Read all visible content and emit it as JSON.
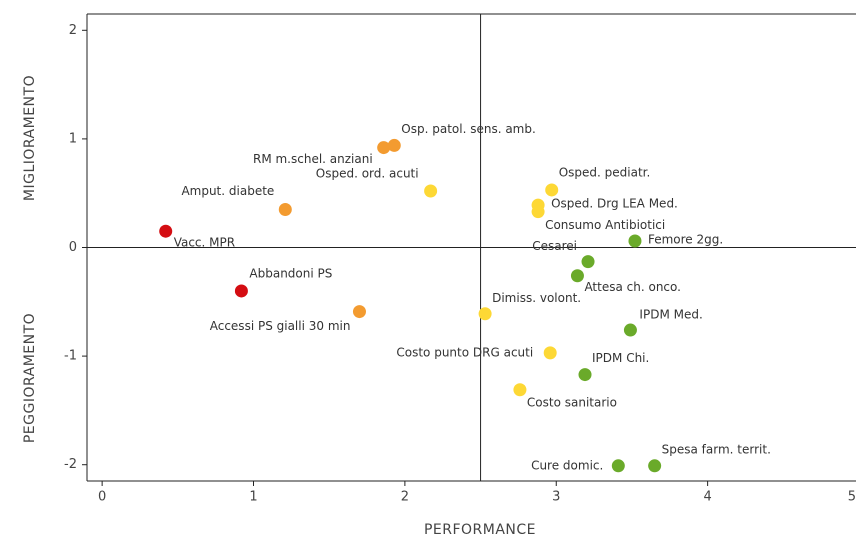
{
  "chart_data": {
    "type": "scatter",
    "xlabel": "PERFORMANCE",
    "ylabel_top": "MIGLIORAMENTO",
    "ylabel_bottom": "PEGGIORAMENTO",
    "labels": [
      "Vacc. MPR",
      "Abbandoni PS",
      "Amput. diabete",
      "Accessi PS gialli 30 min",
      "RM m.schel. anziani",
      "Osp. patol. sens. amb.",
      "Osped. ord. acuti",
      "Dimiss. volont.",
      "Osped. pediatr.",
      "Osped. Drg LEA Med.",
      "Consumo Antibiotici",
      "Costo punto DRG acuti",
      "Costo sanitario",
      "Cesarei",
      "Femore 2gg.",
      "Attesa ch. onco.",
      "IPDM Med.",
      "IPDM Chi.",
      "Cure domic.",
      "Spesa farm. territ."
    ],
    "x": [
      0.42,
      0.92,
      1.21,
      1.7,
      1.86,
      1.93,
      2.17,
      2.53,
      2.97,
      2.88,
      2.88,
      2.96,
      2.76,
      3.21,
      3.52,
      3.14,
      3.49,
      3.19,
      3.41,
      3.65
    ],
    "values": [
      0.15,
      -0.4,
      0.35,
      -0.59,
      0.92,
      0.94,
      0.52,
      -0.61,
      0.53,
      0.39,
      0.33,
      -0.97,
      -1.31,
      -0.13,
      0.06,
      -0.26,
      -0.76,
      -1.17,
      -2.01,
      -2.01
    ],
    "colors": [
      "#d40d12",
      "#d40d12",
      "#f39b30",
      "#f39b30",
      "#f39b30",
      "#f39b30",
      "#fdd835",
      "#fdd835",
      "#fdd835",
      "#fdd835",
      "#fdd835",
      "#fdd835",
      "#fdd835",
      "#6aaa2a",
      "#6aaa2a",
      "#6aaa2a",
      "#6aaa2a",
      "#6aaa2a",
      "#6aaa2a",
      "#6aaa2a"
    ],
    "xlim": [
      -0.1,
      5
    ],
    "ylim": [
      -2.15,
      2.15
    ],
    "xticks": [
      0,
      1,
      2,
      3,
      4,
      5
    ],
    "yticks": [
      -2,
      -1,
      0,
      1,
      2
    ],
    "vline": 2.5,
    "hline": 0
  }
}
